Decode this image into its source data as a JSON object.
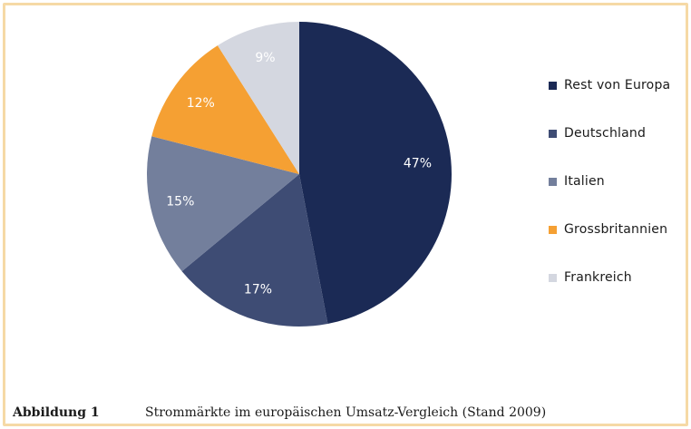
{
  "chart_data": {
    "type": "pie",
    "categories": [
      "Rest von Europa",
      "Deutschland",
      "Italien",
      "Grossbritannien",
      "Frankreich"
    ],
    "values": [
      47,
      17,
      15,
      12,
      9
    ],
    "value_labels": [
      "47%",
      "17%",
      "15%",
      "12%",
      "9%"
    ],
    "colors": [
      "#1b2a55",
      "#3e4c74",
      "#737f9c",
      "#f5a033",
      "#d4d7e0"
    ],
    "start_angle_deg": 0,
    "direction": "clockwise",
    "legend_position": "right"
  },
  "caption": {
    "label": "Abbildung 1",
    "text": "Strommärkte im europäischen Umsatz-Vergleich (Stand 2009)"
  }
}
